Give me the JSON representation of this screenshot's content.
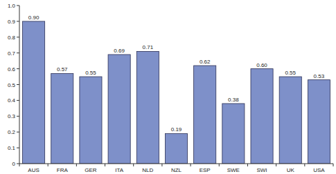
{
  "chart_data": {
    "type": "bar",
    "categories": [
      "AUS",
      "FRA",
      "GER",
      "ITA",
      "NLD",
      "NZL",
      "ESP",
      "SWE",
      "SWI",
      "UK",
      "USA"
    ],
    "values": [
      0.9,
      0.57,
      0.55,
      0.69,
      0.71,
      0.19,
      0.62,
      0.38,
      0.6,
      0.55,
      0.53
    ],
    "value_labels": [
      "0.90",
      "0.57",
      "0.55",
      "0.69",
      "0.71",
      "0.19",
      "0.62",
      "0.38",
      "0.60",
      "0.55",
      "0.53"
    ],
    "color": "#7e90c9",
    "ylim": [
      0,
      1
    ],
    "yticks": [
      0,
      0.1,
      0.2,
      0.3,
      0.4,
      0.5,
      0.6,
      0.7,
      0.8,
      0.9,
      {
        "value": 1,
        "label": "1.0"
      }
    ],
    "grid": false,
    "data_labels": true
  }
}
